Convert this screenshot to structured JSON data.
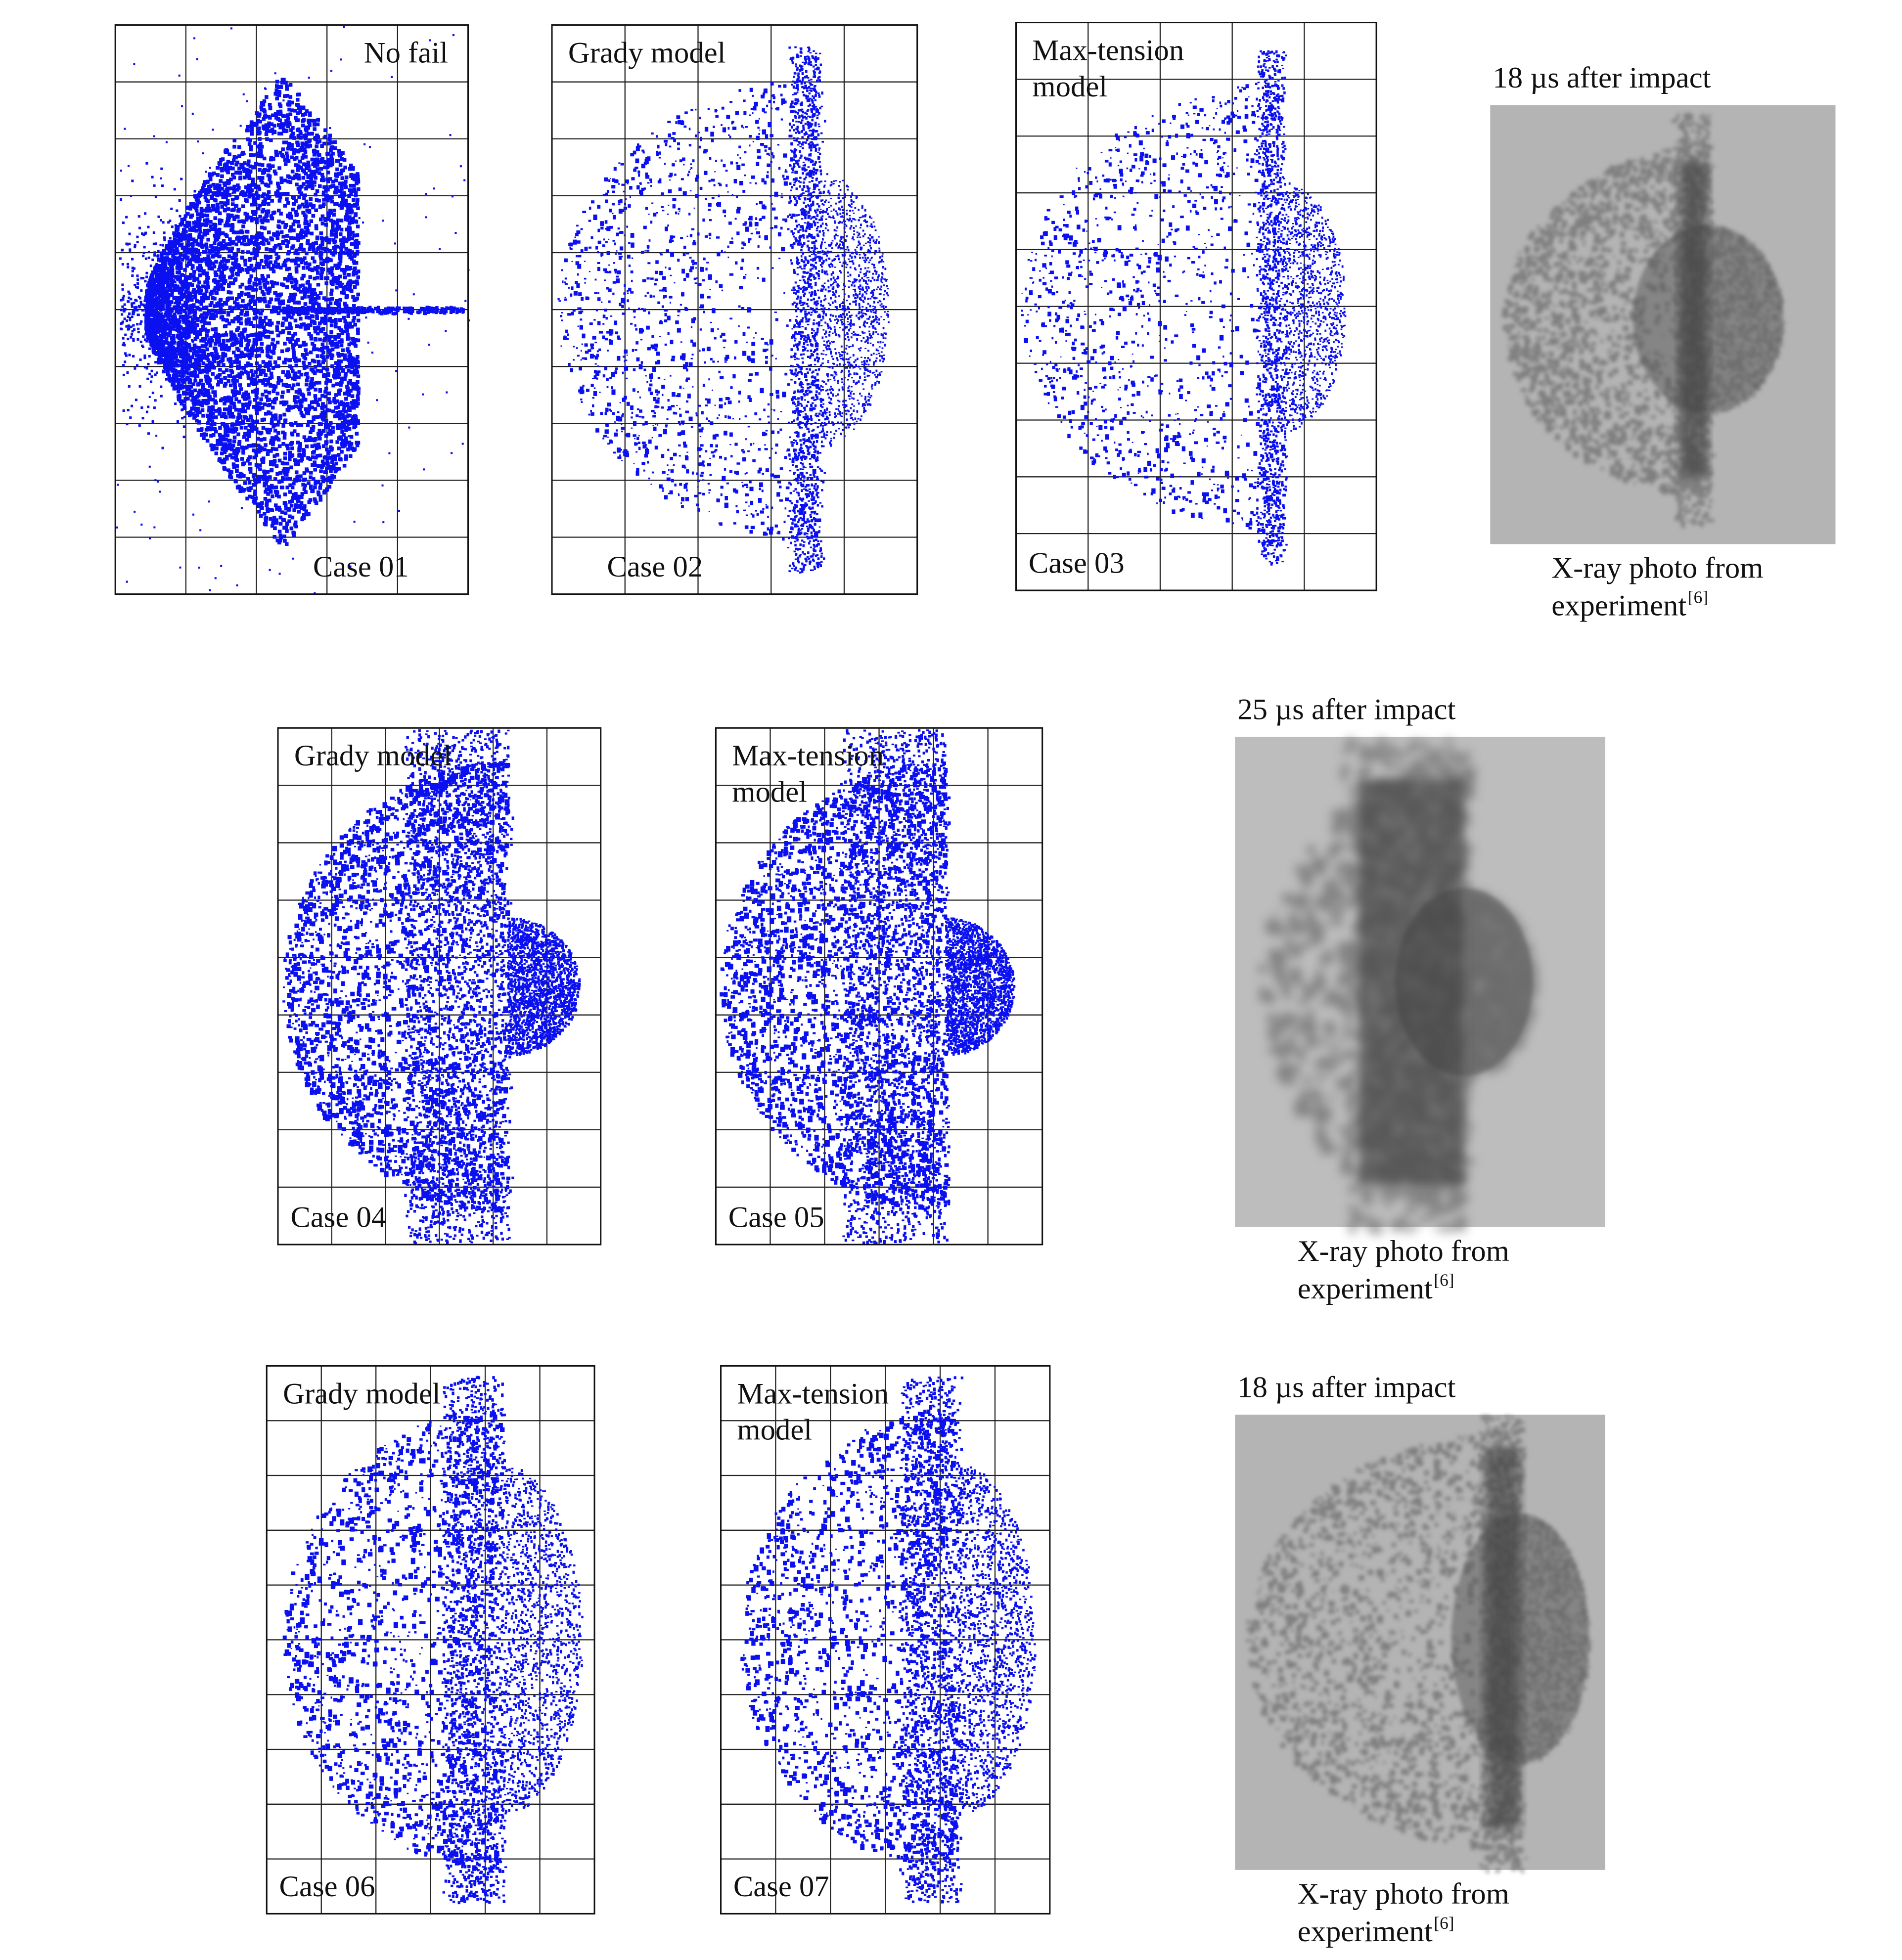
{
  "figure": {
    "panels": [
      {
        "label": [
          "No fail"
        ],
        "case": "Case 01"
      },
      {
        "label": [
          "Grady model"
        ],
        "case": "Case 02"
      },
      {
        "label": [
          "Max-tension",
          "model"
        ],
        "case": "Case 03"
      },
      {
        "label": [
          "Grady model"
        ],
        "case": "Case 04"
      },
      {
        "label": [
          "Max-tension",
          "model"
        ],
        "case": "Case 05"
      },
      {
        "label": [
          "Grady model"
        ],
        "case": "Case 06"
      },
      {
        "label": [
          "Max-tension",
          "model"
        ],
        "case": "Case 07"
      }
    ],
    "photos": [
      {
        "title": "18 µs after impact",
        "caption": [
          "X-ray photo from",
          "experiment"
        ],
        "reference": "[6]"
      },
      {
        "title": "25 µs after impact",
        "caption": [
          "X-ray photo from",
          "experiment"
        ],
        "reference": "[6]"
      },
      {
        "title": "18 µs after impact",
        "caption": [
          "X-ray photo from",
          "experiment"
        ],
        "reference": "[6]"
      }
    ]
  }
}
